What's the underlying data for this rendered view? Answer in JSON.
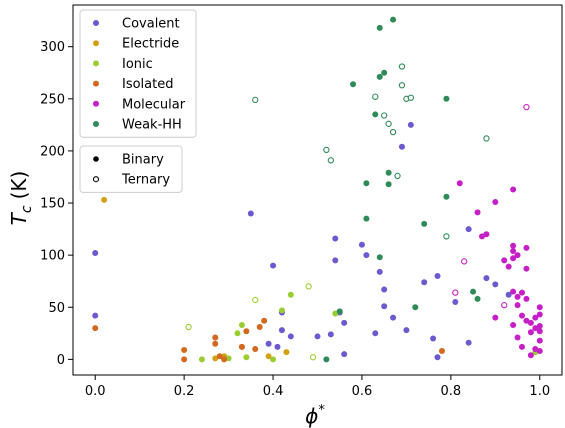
{
  "chart_data": {
    "type": "scatter",
    "title": "",
    "xlabel": "ϕ",
    "xlabel_sup": "*",
    "ylabel": "T",
    "ylabel_sub": "c",
    "ylabel_unit": "(K)",
    "xlim": [
      -0.05,
      1.05
    ],
    "ylim": [
      -15,
      340
    ],
    "xticks": [
      0.0,
      0.2,
      0.4,
      0.6,
      0.8,
      1.0
    ],
    "xtick_labels": [
      "0.0",
      "0.2",
      "0.4",
      "0.6",
      "0.8",
      "1.0"
    ],
    "yticks": [
      0,
      50,
      100,
      150,
      200,
      250,
      300
    ],
    "ytick_labels": [
      "0",
      "50",
      "100",
      "150",
      "200",
      "250",
      "300"
    ],
    "grid": false,
    "legend_placement": "top-left",
    "series": [
      {
        "name": "Covalent",
        "color": "#6a5acd",
        "binary": [
          [
            0.0,
            102
          ],
          [
            0.0,
            42
          ],
          [
            0.35,
            140
          ],
          [
            0.4,
            90
          ],
          [
            0.42,
            45
          ],
          [
            0.42,
            28
          ],
          [
            0.44,
            22
          ],
          [
            0.39,
            15
          ],
          [
            0.41,
            12
          ],
          [
            0.5,
            22
          ],
          [
            0.53,
            24
          ],
          [
            0.54,
            116
          ],
          [
            0.54,
            95
          ],
          [
            0.55,
            45
          ],
          [
            0.56,
            35
          ],
          [
            0.56,
            5
          ],
          [
            0.6,
            110
          ],
          [
            0.61,
            100
          ],
          [
            0.63,
            25
          ],
          [
            0.64,
            84
          ],
          [
            0.65,
            67
          ],
          [
            0.65,
            51
          ],
          [
            0.67,
            40
          ],
          [
            0.69,
            204
          ],
          [
            0.7,
            28
          ],
          [
            0.71,
            225
          ],
          [
            0.74,
            74
          ],
          [
            0.76,
            20
          ],
          [
            0.77,
            80
          ],
          [
            0.77,
            2
          ],
          [
            0.81,
            55
          ],
          [
            0.84,
            125
          ],
          [
            0.84,
            16
          ],
          [
            0.88,
            78
          ],
          [
            0.9,
            72
          ],
          [
            0.93,
            62
          ]
        ],
        "ternary": []
      },
      {
        "name": "Electride",
        "color": "#d4a017",
        "binary": [
          [
            0.02,
            153
          ],
          [
            0.27,
            1
          ],
          [
            0.29,
            3
          ],
          [
            0.39,
            3
          ],
          [
            0.43,
            7
          ],
          [
            0.33,
            12
          ]
        ],
        "ternary": []
      },
      {
        "name": "Ionic",
        "color": "#9acd32",
        "binary": [
          [
            0.24,
            0
          ],
          [
            0.3,
            1
          ],
          [
            0.32,
            25
          ],
          [
            0.33,
            33
          ],
          [
            0.34,
            2
          ],
          [
            0.4,
            0
          ],
          [
            0.42,
            47
          ],
          [
            0.44,
            62
          ],
          [
            0.54,
            44
          ],
          [
            0.99,
            7
          ]
        ],
        "ternary": [
          [
            0.21,
            31
          ],
          [
            0.36,
            57
          ],
          [
            0.48,
            70
          ],
          [
            0.49,
            2
          ]
        ]
      },
      {
        "name": "Isolated",
        "color": "#d2691e",
        "binary": [
          [
            0.0,
            30
          ],
          [
            0.2,
            9
          ],
          [
            0.2,
            0
          ],
          [
            0.27,
            21
          ],
          [
            0.27,
            15
          ],
          [
            0.28,
            3
          ],
          [
            0.29,
            0
          ],
          [
            0.33,
            12
          ],
          [
            0.34,
            27
          ],
          [
            0.36,
            10
          ],
          [
            0.37,
            31
          ],
          [
            0.38,
            37
          ],
          [
            0.78,
            8
          ]
        ],
        "ternary": []
      },
      {
        "name": "Molecular",
        "color": "#c71fc7",
        "binary": [
          [
            0.82,
            169
          ],
          [
            0.86,
            141
          ],
          [
            0.87,
            118
          ],
          [
            0.88,
            120
          ],
          [
            0.9,
            151
          ],
          [
            0.9,
            40
          ],
          [
            0.92,
            95
          ],
          [
            0.93,
            89
          ],
          [
            0.94,
            109
          ],
          [
            0.94,
            104
          ],
          [
            0.94,
            97
          ],
          [
            0.95,
            100
          ],
          [
            0.94,
            163
          ],
          [
            0.94,
            65
          ],
          [
            0.95,
            60
          ],
          [
            0.95,
            52
          ],
          [
            0.96,
            64
          ],
          [
            0.96,
            42
          ],
          [
            0.97,
            107
          ],
          [
            0.97,
            87
          ],
          [
            0.97,
            58
          ],
          [
            0.97,
            37
          ],
          [
            0.98,
            35
          ],
          [
            0.98,
            26
          ],
          [
            0.98,
            4
          ],
          [
            0.99,
            40
          ],
          [
            0.99,
            30
          ],
          [
            0.99,
            10
          ],
          [
            1.0,
            50
          ],
          [
            1.0,
            43
          ],
          [
            1.0,
            32
          ],
          [
            1.0,
            27
          ],
          [
            1.0,
            18
          ],
          [
            1.0,
            8
          ],
          [
            0.95,
            21
          ],
          [
            0.96,
            12
          ],
          [
            0.94,
            33
          ]
        ],
        "ternary": [
          [
            0.83,
            94
          ],
          [
            0.92,
            52
          ],
          [
            0.97,
            242
          ],
          [
            0.81,
            64
          ]
        ]
      },
      {
        "name": "Weak-HH",
        "color": "#2e8b57",
        "binary": [
          [
            0.52,
            0
          ],
          [
            0.55,
            46
          ],
          [
            0.58,
            264
          ],
          [
            0.61,
            169
          ],
          [
            0.61,
            135
          ],
          [
            0.63,
            235
          ],
          [
            0.64,
            98
          ],
          [
            0.64,
            318
          ],
          [
            0.64,
            271
          ],
          [
            0.65,
            275
          ],
          [
            0.66,
            179
          ],
          [
            0.66,
            168
          ],
          [
            0.67,
            326
          ],
          [
            0.72,
            50
          ],
          [
            0.74,
            130
          ],
          [
            0.79,
            250
          ],
          [
            0.79,
            156
          ],
          [
            0.85,
            65
          ],
          [
            0.86,
            58
          ]
        ],
        "ternary": [
          [
            0.36,
            249
          ],
          [
            0.52,
            201
          ],
          [
            0.53,
            191
          ],
          [
            0.63,
            252
          ],
          [
            0.65,
            234
          ],
          [
            0.66,
            226
          ],
          [
            0.67,
            218
          ],
          [
            0.68,
            176
          ],
          [
            0.69,
            281
          ],
          [
            0.69,
            263
          ],
          [
            0.7,
            250
          ],
          [
            0.71,
            251
          ],
          [
            0.79,
            118
          ],
          [
            0.88,
            212
          ]
        ]
      }
    ],
    "marker_legend": [
      {
        "label": "Binary",
        "style": "filled"
      },
      {
        "label": "Ternary",
        "style": "hollow"
      }
    ]
  }
}
